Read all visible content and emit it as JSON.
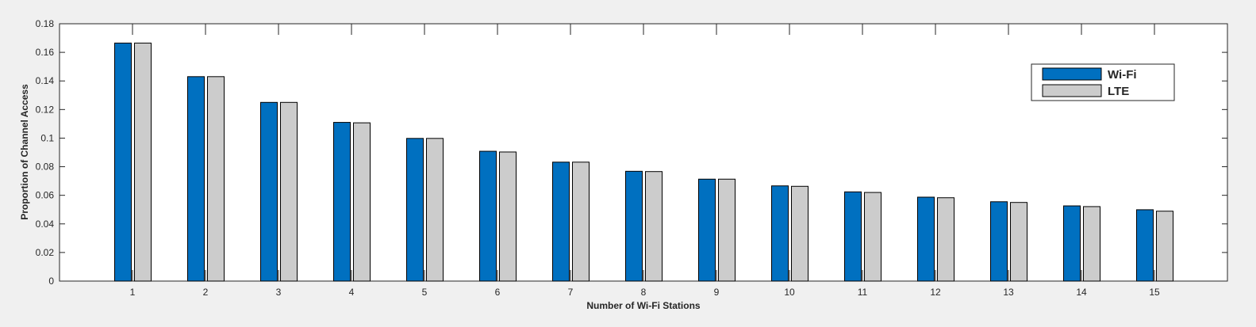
{
  "chart_data": {
    "type": "bar",
    "title": "",
    "xlabel": "Number of Wi-Fi Stations",
    "ylabel": "Proportion of Channel Access",
    "categories": [
      "1",
      "2",
      "3",
      "4",
      "5",
      "6",
      "7",
      "8",
      "9",
      "10",
      "11",
      "12",
      "13",
      "14",
      "15"
    ],
    "series": [
      {
        "name": "Wi-Fi",
        "color": "#0070c0",
        "values": [
          0.1665,
          0.143,
          0.125,
          0.111,
          0.0998,
          0.0908,
          0.0832,
          0.0768,
          0.0713,
          0.0666,
          0.0624,
          0.0587,
          0.0555,
          0.0526,
          0.0499
        ]
      },
      {
        "name": "LTE",
        "color": "#cccccc",
        "values": [
          0.1665,
          0.143,
          0.125,
          0.1107,
          0.0998,
          0.0903,
          0.0832,
          0.0766,
          0.0713,
          0.0663,
          0.062,
          0.0583,
          0.055,
          0.0521,
          0.0489
        ]
      }
    ],
    "yticks": [
      "0",
      "0.02",
      "0.04",
      "0.06",
      "0.08",
      "0.1",
      "0.12",
      "0.14",
      "0.16",
      "0.18"
    ],
    "ylim": [
      0,
      0.18
    ],
    "grid": false,
    "legend_position": "top-right"
  }
}
